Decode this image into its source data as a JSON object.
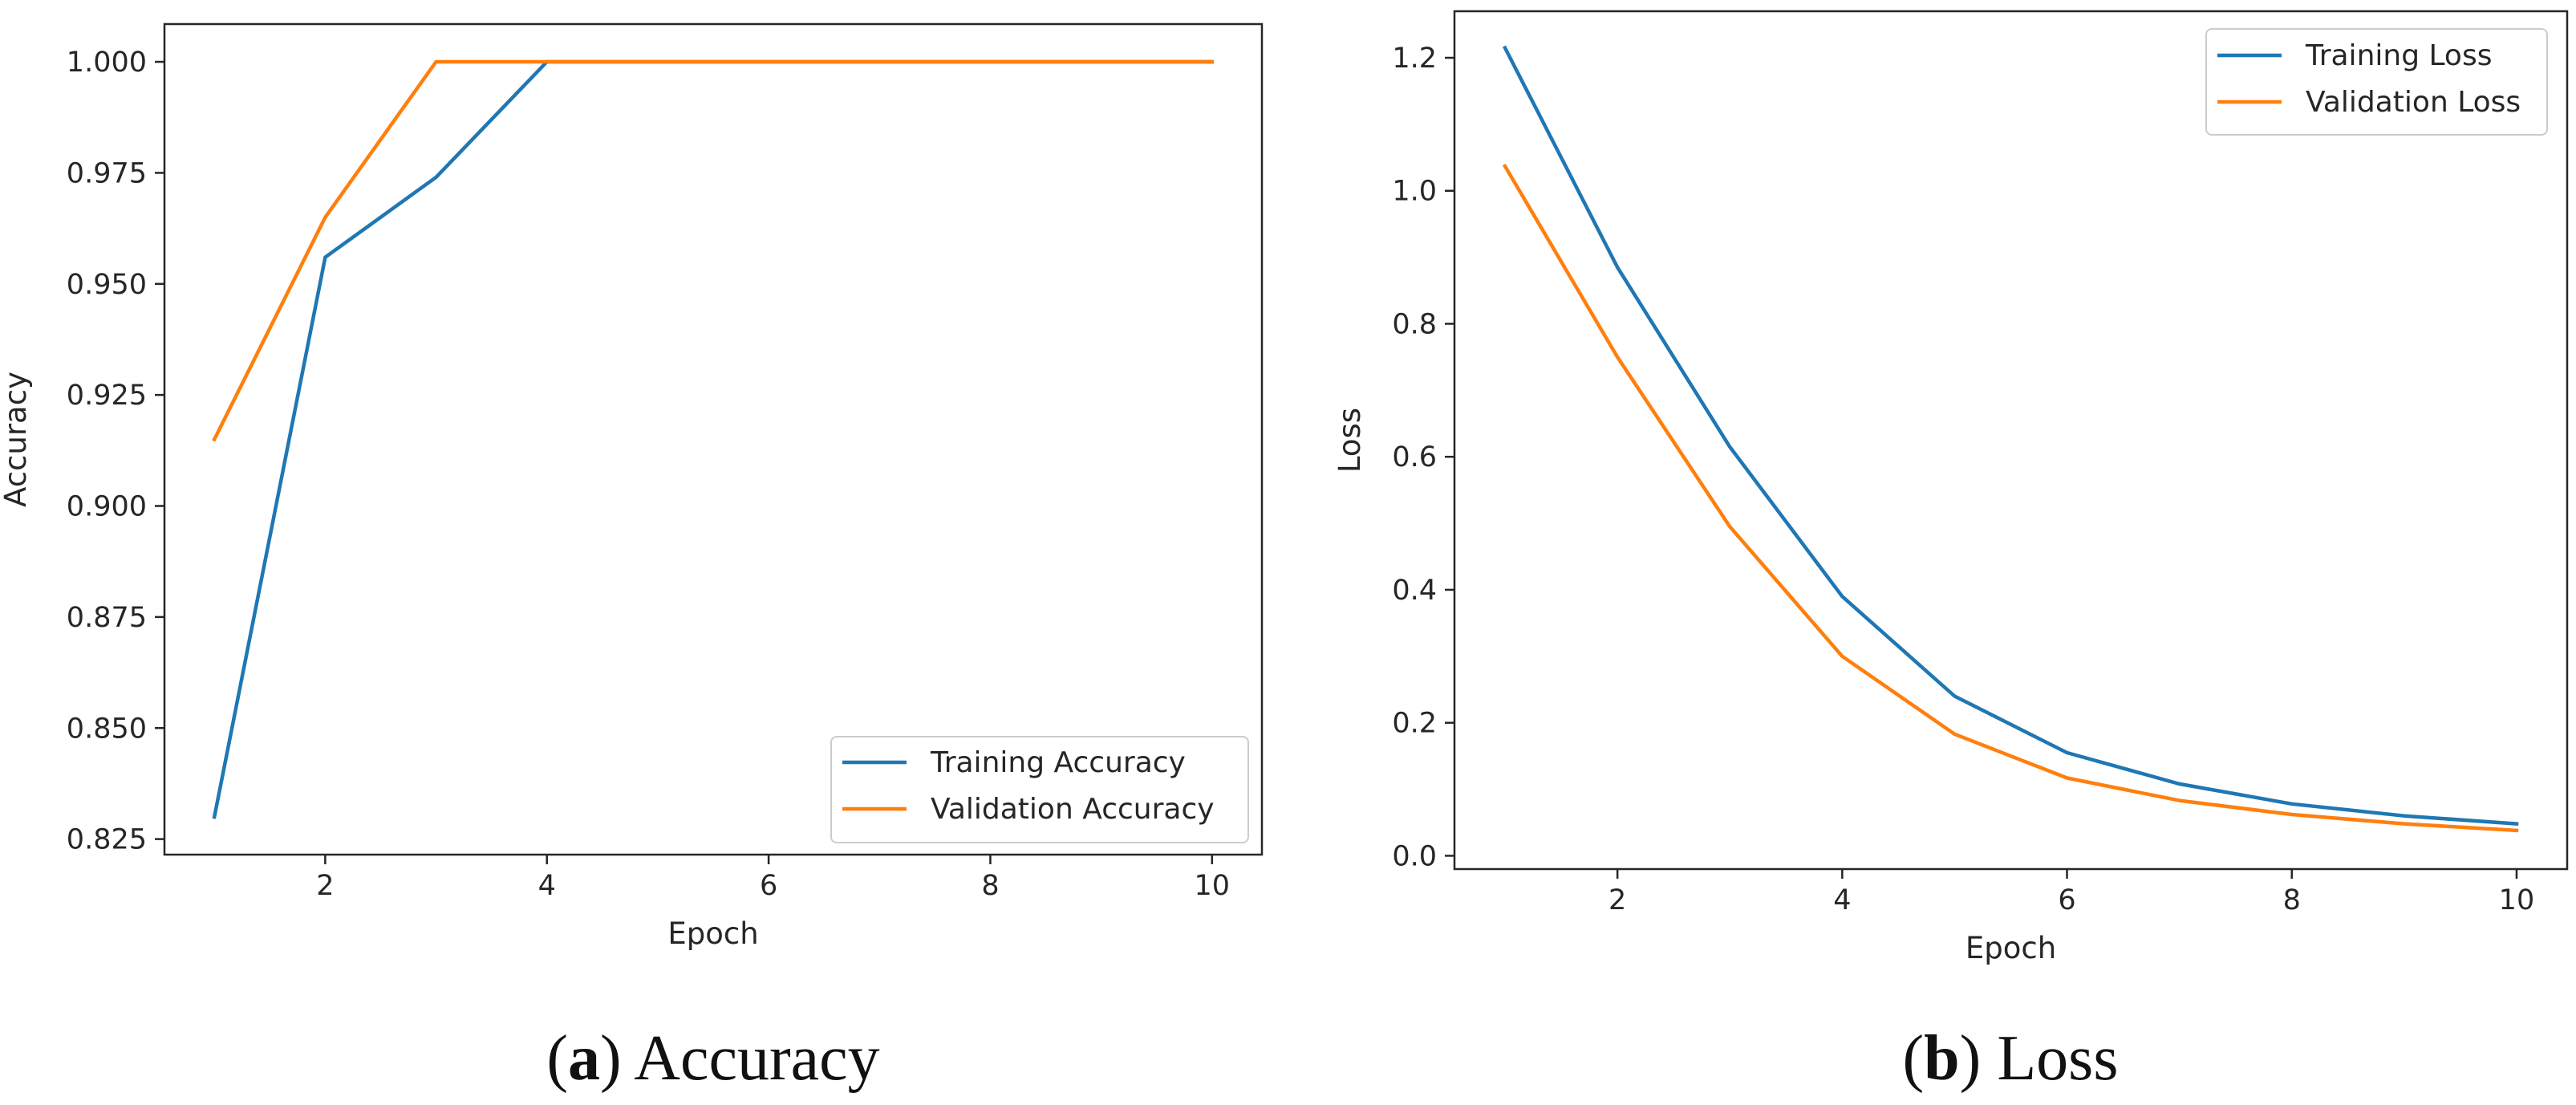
{
  "colors": {
    "training": "#1f77b4",
    "validation": "#ff7f0e",
    "axes": "#262626",
    "legend_border": "#cccccc"
  },
  "chart_data": [
    {
      "type": "line",
      "caption_letter": "a",
      "caption_text": "Accuracy",
      "xlabel": "Epoch",
      "ylabel": "Accuracy",
      "xlim": [
        0.55,
        10.45
      ],
      "ylim": [
        0.8215,
        1.0085
      ],
      "xticks": [
        2,
        4,
        6,
        8,
        10
      ],
      "xtick_labels": [
        "2",
        "4",
        "6",
        "8",
        "10"
      ],
      "yticks": [
        0.825,
        0.85,
        0.875,
        0.9,
        0.925,
        0.95,
        0.975,
        1.0
      ],
      "ytick_labels": [
        "0.825",
        "0.850",
        "0.875",
        "0.900",
        "0.925",
        "0.950",
        "0.975",
        "1.000"
      ],
      "legend_position": "lower-right",
      "x": [
        1,
        2,
        3,
        4,
        5,
        6,
        7,
        8,
        9,
        10
      ],
      "series": [
        {
          "name": "Training Accuracy",
          "color_key": "training",
          "values": [
            0.83,
            0.956,
            0.974,
            1.0,
            1.0,
            1.0,
            1.0,
            1.0,
            1.0,
            1.0
          ]
        },
        {
          "name": "Validation Accuracy",
          "color_key": "validation",
          "values": [
            0.915,
            0.965,
            1.0,
            1.0,
            1.0,
            1.0,
            1.0,
            1.0,
            1.0,
            1.0
          ]
        }
      ]
    },
    {
      "type": "line",
      "caption_letter": "b",
      "caption_text": "Loss",
      "xlabel": "Epoch",
      "ylabel": "Loss",
      "xlim": [
        0.55,
        10.45
      ],
      "ylim": [
        -0.02,
        1.27
      ],
      "xticks": [
        2,
        4,
        6,
        8,
        10
      ],
      "xtick_labels": [
        "2",
        "4",
        "6",
        "8",
        "10"
      ],
      "yticks": [
        0.0,
        0.2,
        0.4,
        0.6,
        0.8,
        1.0,
        1.2
      ],
      "ytick_labels": [
        "0.0",
        "0.2",
        "0.4",
        "0.6",
        "0.8",
        "1.0",
        "1.2"
      ],
      "legend_position": "top-right",
      "x": [
        1,
        2,
        3,
        4,
        5,
        6,
        7,
        8,
        9,
        10
      ],
      "series": [
        {
          "name": "Training Loss",
          "color_key": "training",
          "values": [
            1.215,
            0.885,
            0.615,
            0.39,
            0.24,
            0.155,
            0.108,
            0.078,
            0.06,
            0.048
          ]
        },
        {
          "name": "Validation Loss",
          "color_key": "validation",
          "values": [
            1.037,
            0.75,
            0.495,
            0.3,
            0.183,
            0.117,
            0.083,
            0.062,
            0.048,
            0.038
          ]
        }
      ]
    }
  ]
}
